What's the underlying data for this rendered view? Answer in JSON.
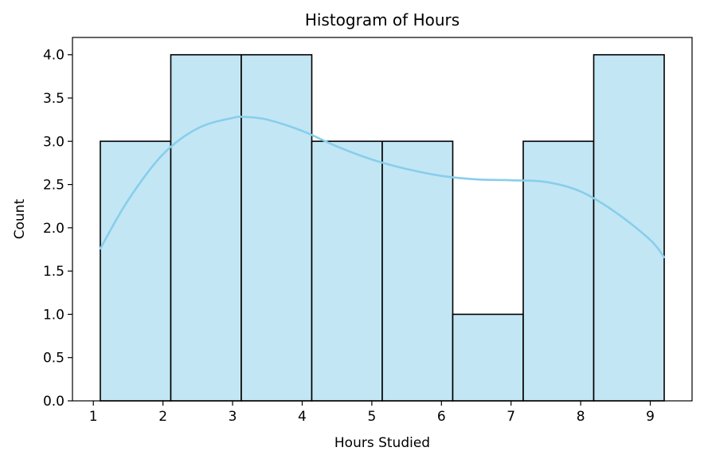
{
  "chart_data": {
    "type": "bar",
    "title": "Histogram of Hours",
    "xlabel": "Hours Studied",
    "ylabel": "Count",
    "bins": [
      {
        "start": 1.1,
        "end": 2.1125,
        "count": 3
      },
      {
        "start": 2.1125,
        "end": 3.125,
        "count": 4
      },
      {
        "start": 3.125,
        "end": 4.1375,
        "count": 4
      },
      {
        "start": 4.1375,
        "end": 5.15,
        "count": 3
      },
      {
        "start": 5.15,
        "end": 6.1625,
        "count": 3
      },
      {
        "start": 6.1625,
        "end": 7.175,
        "count": 1
      },
      {
        "start": 7.175,
        "end": 8.1875,
        "count": 3
      },
      {
        "start": 8.1875,
        "end": 9.2,
        "count": 4
      }
    ],
    "kde": {
      "x": [
        1.1,
        1.5,
        2.0,
        2.5,
        3.0,
        3.2,
        3.5,
        4.0,
        4.5,
        5.0,
        5.5,
        6.0,
        6.5,
        7.0,
        7.5,
        8.0,
        8.5,
        9.0,
        9.2
      ],
      "y": [
        1.76,
        2.32,
        2.85,
        3.15,
        3.27,
        3.28,
        3.25,
        3.12,
        2.94,
        2.79,
        2.68,
        2.6,
        2.56,
        2.55,
        2.53,
        2.42,
        2.18,
        1.86,
        1.66
      ]
    },
    "xlim": [
      0.7,
      9.6
    ],
    "ylim": [
      0,
      4.2
    ],
    "xticks": [
      1,
      2,
      3,
      4,
      5,
      6,
      7,
      8,
      9
    ],
    "yticks": [
      0.0,
      0.5,
      1.0,
      1.5,
      2.0,
      2.5,
      3.0,
      3.5,
      4.0
    ],
    "ytick_labels": [
      "0.0",
      "0.5",
      "1.0",
      "1.5",
      "2.0",
      "2.5",
      "3.0",
      "3.5",
      "4.0"
    ],
    "grid": false,
    "colors": {
      "bar_fill": "#c3e6f4",
      "bar_edge": "#000000",
      "kde_line": "#87ceeb"
    }
  }
}
